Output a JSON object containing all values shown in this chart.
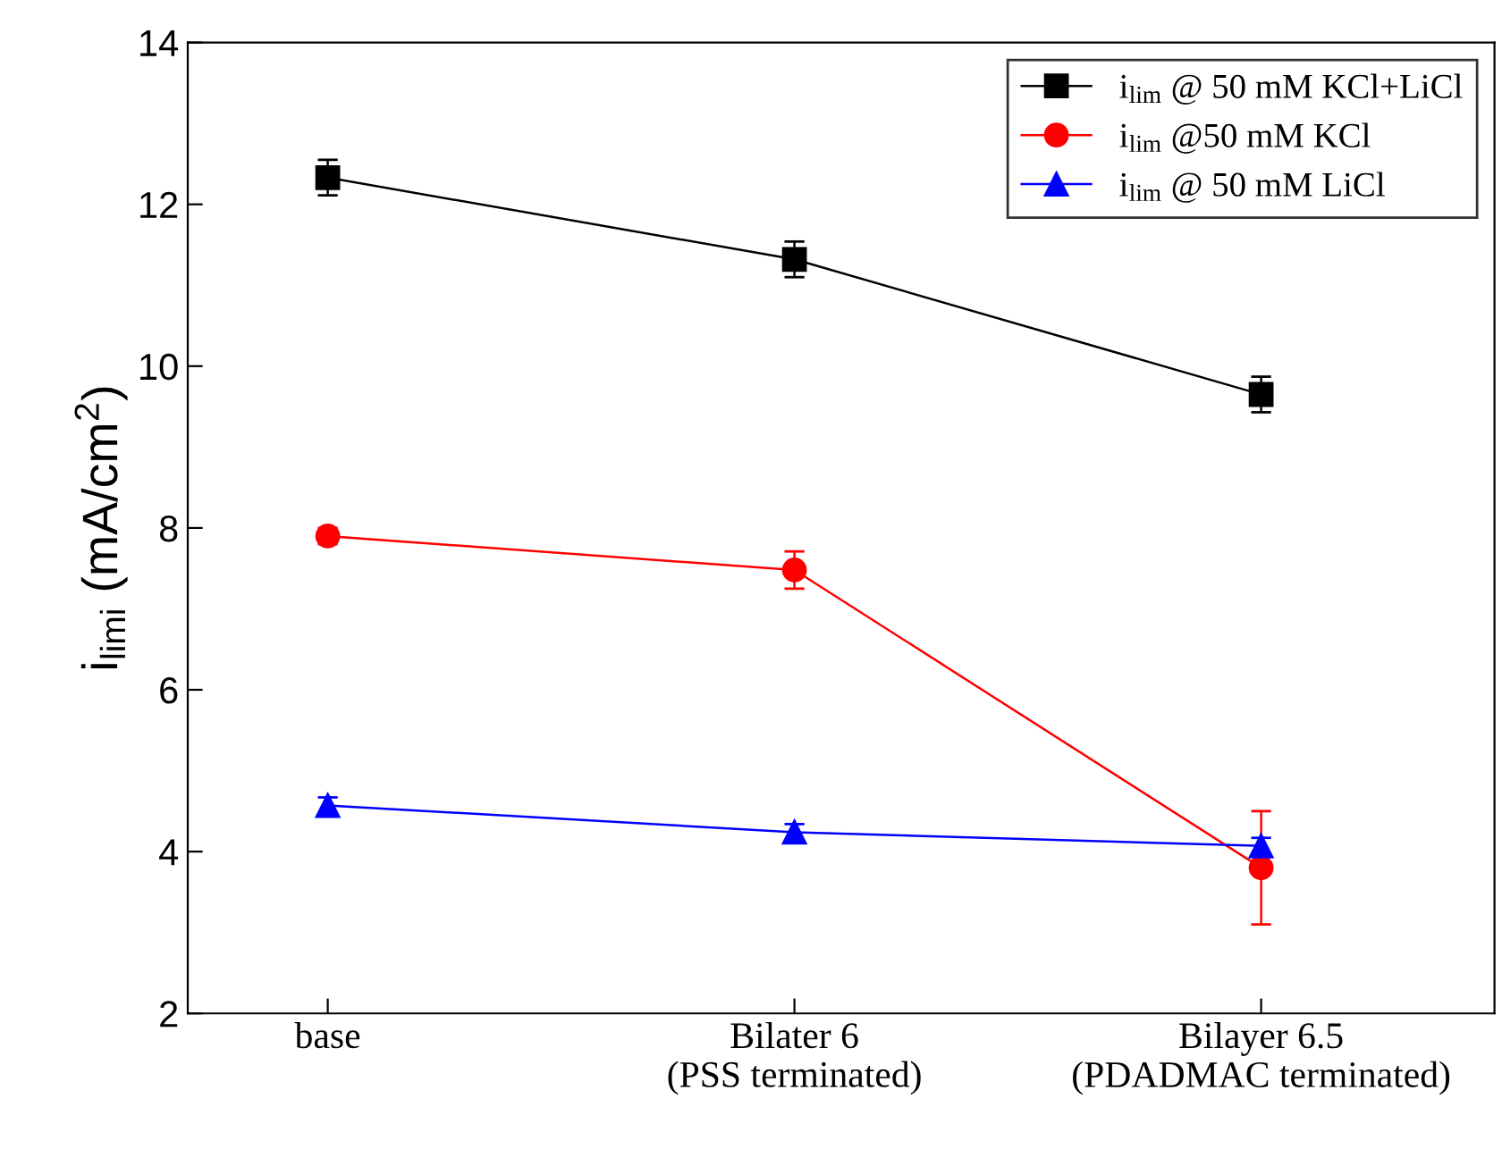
{
  "chart_data": {
    "type": "line",
    "ylabel": "i$_{limi}$ (mA/cm$^{2}$)",
    "categories": [
      "base",
      "Bilater 6\n(PSS terminated)",
      "Bilayer 6.5\n(PDADMAC terminated)"
    ],
    "series": [
      {
        "name": "i$_{lim}$ @ 50 mM KCl+LiCl",
        "color": "#000000",
        "marker": "square",
        "values": [
          12.33,
          11.32,
          9.65
        ],
        "errors": [
          0.22,
          0.22,
          0.22
        ]
      },
      {
        "name": "i$_{lim}$ @50 mM KCl",
        "color": "#ff0000",
        "marker": "circle",
        "values": [
          7.9,
          7.48,
          3.8
        ],
        "errors": [
          0.1,
          0.23,
          0.7
        ]
      },
      {
        "name": "i$_{lim}$ @ 50 mM LiCl",
        "color": "#0000ff",
        "marker": "triangle",
        "values": [
          4.57,
          4.24,
          4.07
        ],
        "errors": [
          0.1,
          0.1,
          0.1
        ]
      }
    ],
    "ylim": [
      2,
      14
    ],
    "yticks": [
      2,
      4,
      6,
      8,
      10,
      12,
      14
    ],
    "grid": false,
    "legend": "top right",
    "line_style": "solid"
  }
}
